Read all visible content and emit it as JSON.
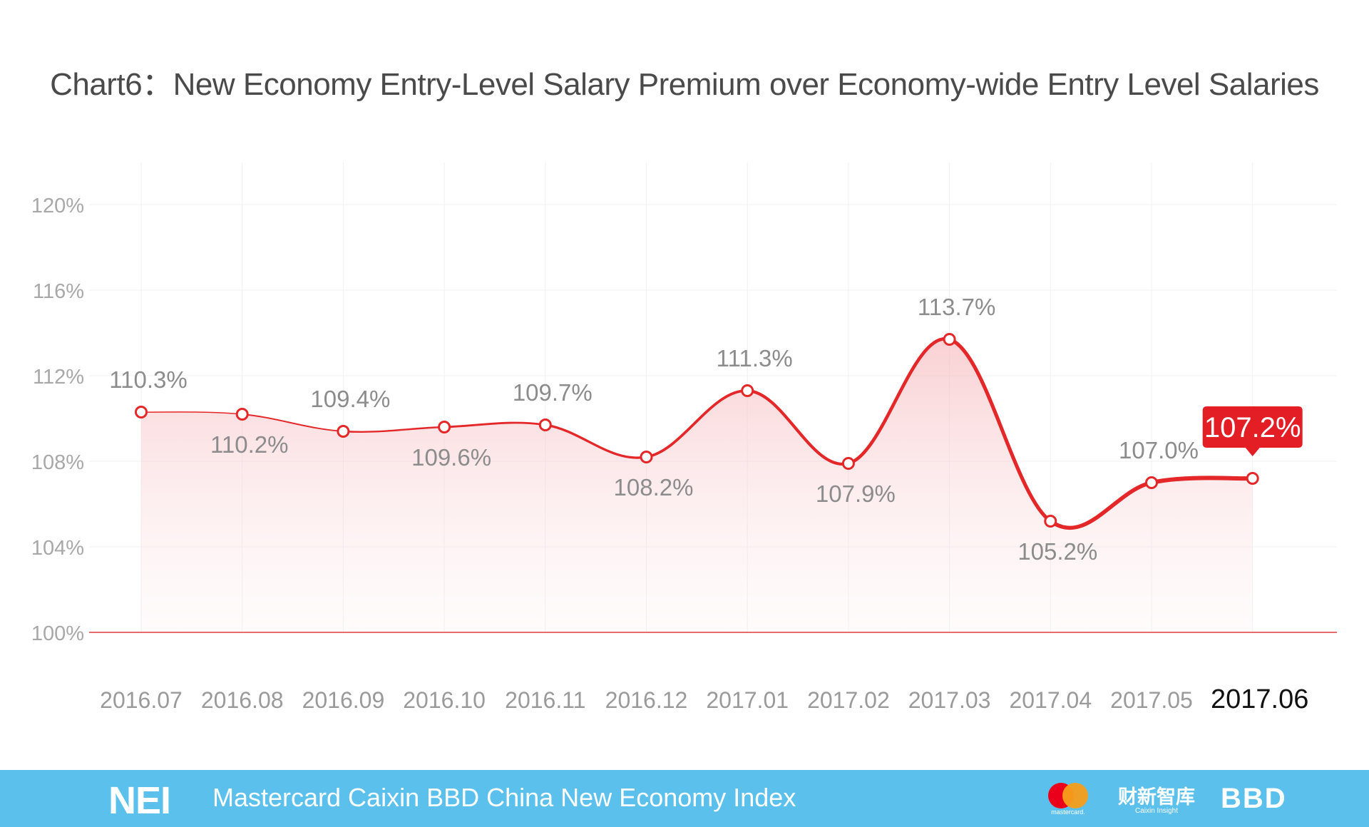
{
  "title": "Chart6：New Economy Entry-Level Salary Premium over Economy-wide Entry Level Salaries",
  "chart_data": {
    "type": "line",
    "title": "Chart6：New Economy Entry-Level Salary Premium over Economy-wide Entry Level Salaries",
    "xlabel": "",
    "ylabel": "",
    "categories": [
      "2016.07",
      "2016.08",
      "2016.09",
      "2016.10",
      "2016.11",
      "2016.12",
      "2017.01",
      "2017.02",
      "2017.03",
      "2017.04",
      "2017.05",
      "2017.06"
    ],
    "values": [
      110.3,
      110.2,
      109.4,
      109.6,
      109.7,
      108.2,
      111.3,
      107.9,
      113.7,
      105.2,
      107.0,
      107.2
    ],
    "value_labels": [
      "110.3%",
      "110.2%",
      "109.4%",
      "109.6%",
      "109.7%",
      "108.2%",
      "111.3%",
      "107.9%",
      "113.7%",
      "105.2%",
      "107.0%",
      "107.2%"
    ],
    "y_ticks": [
      100,
      104,
      108,
      112,
      116,
      120
    ],
    "y_tick_labels": [
      "100%",
      "104%",
      "108%",
      "112%",
      "116%",
      "120%"
    ],
    "ylim": [
      100,
      120
    ],
    "grid": true,
    "highlight_index": 11,
    "colors": {
      "line": "#e42728",
      "baseline": "#e23b3b",
      "grid": "#f0f0f0",
      "label": "#8c8c8c",
      "callout": "#e31e24"
    }
  },
  "footer": {
    "logo": "NEI",
    "text": "Mastercard Caixin BBD China New Economy Index",
    "mastercard_label": "mastercard.",
    "caixin_cn": "财新智库",
    "caixin_en": "Caixin Insight",
    "bbd": "BBD",
    "background": "#5bc0ec"
  }
}
